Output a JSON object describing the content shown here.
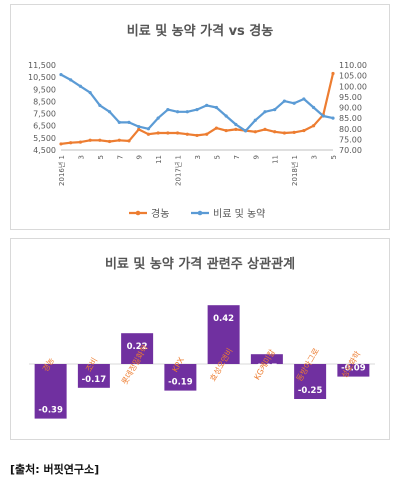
{
  "source_label": "[출처: 버핏연구소]",
  "chart_data": [
    {
      "type": "line",
      "title": "비료 및 농약 가격 vs 경농",
      "xlabel": "",
      "ylabel": "",
      "x": [
        "2016년 1",
        "2",
        "3",
        "4",
        "5",
        "6",
        "7",
        "8",
        "9",
        "10",
        "11",
        "12",
        "2017년 1",
        "2",
        "3",
        "4",
        "5",
        "6",
        "7",
        "8",
        "9",
        "10",
        "11",
        "12",
        "2018년 1",
        "2",
        "3",
        "4",
        "5"
      ],
      "x_tick_labels": [
        "2016년 1",
        "3",
        "5",
        "7",
        "9",
        "11",
        "2017년 1",
        "3",
        "5",
        "7",
        "9",
        "11",
        "2018년 1",
        "3",
        "5"
      ],
      "series": [
        {
          "name": "경농",
          "axis": "left",
          "color": "#ed7d31",
          "values": [
            5000,
            5100,
            5150,
            5300,
            5300,
            5200,
            5300,
            5250,
            6200,
            5800,
            5900,
            5900,
            5900,
            5800,
            5700,
            5800,
            6300,
            6100,
            6200,
            6100,
            6000,
            6200,
            6000,
            5900,
            5950,
            6100,
            6500,
            7400,
            10800
          ]
        },
        {
          "name": "비료 및 농약",
          "axis": "right",
          "color": "#5b9bd5",
          "values": [
            105.5,
            103,
            100,
            97,
            91,
            88,
            83,
            83,
            81,
            80,
            85,
            89,
            88,
            88,
            89,
            91,
            90,
            86,
            82,
            79,
            84,
            88,
            89,
            93,
            92,
            94,
            90,
            86,
            85
          ]
        }
      ],
      "ylim_left": [
        4500,
        11500
      ],
      "yticks_left": [
        "4,500",
        "5,500",
        "6,500",
        "7,500",
        "8,500",
        "9,500",
        "10,500",
        "11,500"
      ],
      "ylim_right": [
        70,
        110
      ],
      "yticks_right": [
        "70.00",
        "75.00",
        "80.00",
        "85.00",
        "90.00",
        "95.00",
        "100.00",
        "105.00",
        "110.00"
      ],
      "legend": "bottom",
      "grid": false
    },
    {
      "type": "bar",
      "title": "비료 및 농약 가격 관련주 상관관계",
      "categories": [
        "경농",
        "조비",
        "롯데정밀화학",
        "KPX",
        "효성오앤비",
        "KG케미칼",
        "동방아그로",
        "성보화학"
      ],
      "values": [
        -0.39,
        -0.17,
        0.22,
        -0.19,
        0.42,
        0.07,
        -0.25,
        -0.09
      ],
      "value_labels": [
        "-0.39",
        "-0.17",
        "0.22",
        "-0.19",
        "0.42",
        "0.07",
        "-0.25",
        "-0.09"
      ],
      "color": "#7030a0",
      "category_label_color": "#ed7d31",
      "legend": "none",
      "grid": false
    }
  ]
}
